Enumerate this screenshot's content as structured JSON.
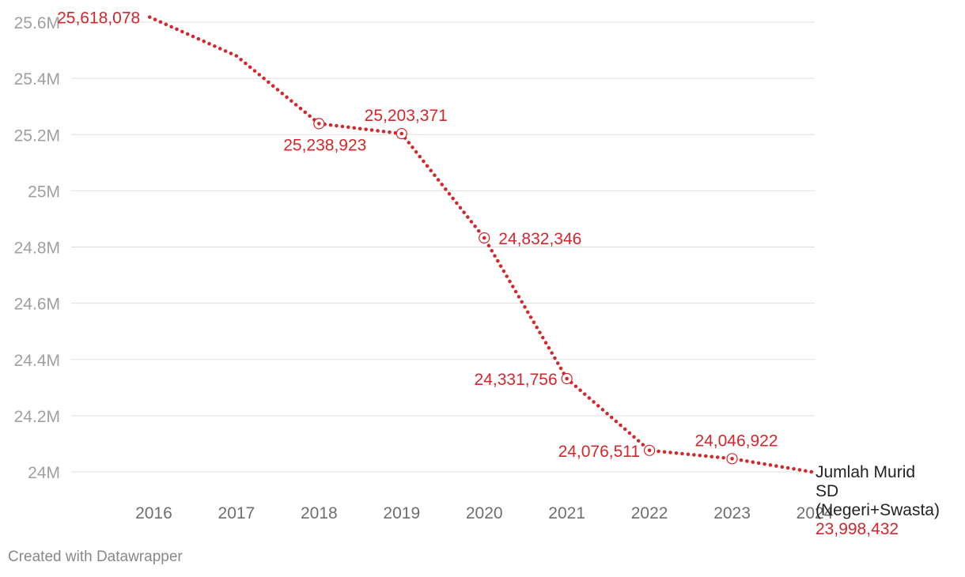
{
  "chart_data": {
    "type": "line",
    "title": "",
    "xlabel": "",
    "ylabel": "",
    "x": [
      2015.95,
      2017,
      2018,
      2019,
      2020,
      2021,
      2022,
      2023,
      2024
    ],
    "x_ticks": [
      "2016",
      "2017",
      "2018",
      "2019",
      "2020",
      "2021",
      "2022",
      "2023",
      "2024"
    ],
    "y_ticks": [
      "24M",
      "24.2M",
      "24.4M",
      "24.6M",
      "24.8M",
      "25M",
      "25.2M",
      "25.4M",
      "25.6M"
    ],
    "ylim": [
      24000000,
      25600000
    ],
    "grid": true,
    "series": [
      {
        "name": "Jumlah Murid SD (Negeri+Swasta)",
        "name_lines": [
          "Jumlah Murid",
          "SD",
          "(Negeri+Swasta)"
        ],
        "value_label": "23,998,432",
        "color": "#d4272b",
        "values": [
          25618078,
          25480000,
          25238923,
          25203371,
          24832346,
          24331756,
          24076511,
          24046922,
          23998432
        ],
        "markers": [
          false,
          false,
          true,
          true,
          true,
          true,
          true,
          true,
          false
        ],
        "labels": [
          "25,618,078",
          "",
          "25,238,923",
          "25,203,371",
          "24,832,346",
          "24,331,756",
          "24,076,511",
          "24,046,922",
          ""
        ],
        "label_pos": [
          "left",
          "",
          "below-left",
          "above-left",
          "right",
          "left",
          "left",
          "above-left",
          ""
        ]
      }
    ]
  },
  "footer": {
    "credit": "Created with Datawrapper"
  }
}
